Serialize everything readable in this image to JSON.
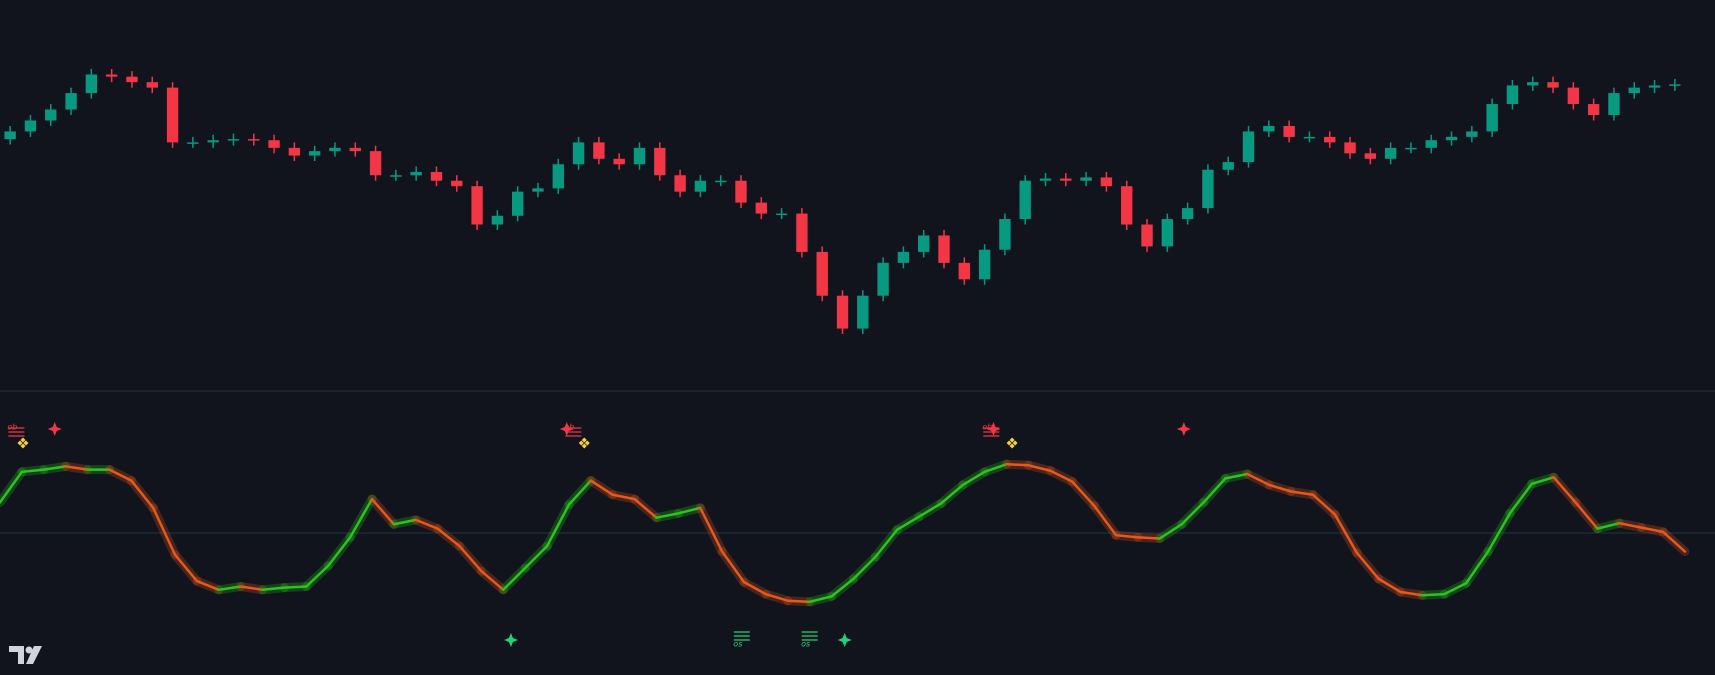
{
  "chart_data": [
    {
      "type": "candlestick",
      "up_color": "#089981",
      "down_color": "#f23645",
      "ylim": [
        0,
        357
      ],
      "open": [
        230,
        237,
        247,
        257,
        272,
        289,
        287,
        282,
        277,
        227,
        227,
        229,
        230,
        229,
        222,
        215,
        219,
        222,
        219,
        197,
        197,
        200,
        192,
        187,
        152,
        160,
        182,
        185,
        207,
        227,
        212,
        207,
        222,
        197,
        182,
        192,
        192,
        172,
        162,
        162,
        127,
        87,
        57,
        87,
        117,
        127,
        142,
        117,
        102,
        129,
        157,
        192,
        194,
        192,
        195,
        187,
        152,
        132,
        157,
        167,
        202,
        209,
        237,
        242,
        232,
        232,
        227,
        217,
        212,
        222,
        222,
        229,
        232,
        237,
        262,
        279,
        282,
        277,
        262,
        252,
        272,
        277,
        279
      ],
      "high": [
        242,
        252,
        262,
        277,
        294,
        294,
        292,
        287,
        282,
        232,
        234,
        235,
        235,
        234,
        227,
        224,
        227,
        227,
        224,
        202,
        205,
        205,
        197,
        192,
        165,
        187,
        190,
        212,
        232,
        232,
        217,
        227,
        227,
        202,
        197,
        197,
        197,
        177,
        167,
        167,
        132,
        92,
        92,
        122,
        132,
        147,
        147,
        122,
        134,
        162,
        197,
        199,
        199,
        200,
        200,
        192,
        157,
        162,
        172,
        207,
        214,
        242,
        247,
        247,
        237,
        237,
        232,
        222,
        227,
        227,
        234,
        237,
        242,
        267,
        284,
        287,
        287,
        282,
        267,
        277,
        282,
        284,
        285
      ],
      "low": [
        225,
        232,
        242,
        252,
        267,
        282,
        277,
        272,
        222,
        222,
        222,
        224,
        224,
        217,
        210,
        210,
        214,
        214,
        192,
        192,
        192,
        187,
        182,
        147,
        147,
        155,
        177,
        180,
        202,
        207,
        202,
        202,
        192,
        177,
        177,
        187,
        167,
        157,
        157,
        122,
        82,
        52,
        52,
        82,
        112,
        122,
        112,
        97,
        97,
        124,
        152,
        187,
        187,
        187,
        182,
        147,
        127,
        127,
        152,
        162,
        197,
        204,
        232,
        227,
        227,
        222,
        212,
        207,
        207,
        217,
        217,
        224,
        227,
        232,
        257,
        274,
        272,
        257,
        247,
        247,
        267,
        272,
        274
      ],
      "close": [
        237,
        247,
        257,
        272,
        289,
        287,
        282,
        277,
        227,
        227,
        229,
        230,
        229,
        222,
        215,
        219,
        222,
        219,
        197,
        197,
        200,
        192,
        187,
        152,
        160,
        182,
        185,
        207,
        227,
        212,
        207,
        222,
        197,
        182,
        192,
        192,
        172,
        162,
        162,
        127,
        87,
        57,
        87,
        117,
        127,
        142,
        117,
        102,
        129,
        157,
        192,
        194,
        192,
        195,
        187,
        152,
        132,
        157,
        167,
        202,
        209,
        237,
        242,
        232,
        232,
        227,
        217,
        212,
        222,
        222,
        229,
        232,
        237,
        262,
        279,
        282,
        277,
        262,
        252,
        272,
        277,
        279,
        280
      ]
    },
    {
      "type": "oscillator",
      "up_color": "#2bc41c",
      "down_color": "#e8571c",
      "ylim": [
        -130,
        130
      ],
      "xlim": [
        0,
        77
      ],
      "hline": 0,
      "values": [
        28,
        56,
        58,
        61,
        58,
        58,
        48,
        23,
        -20,
        -44,
        -52,
        -49,
        -52,
        -50,
        -49,
        -30,
        -4,
        31,
        8,
        12,
        4,
        -12,
        -35,
        -52,
        -32,
        -12,
        26,
        48,
        35,
        31,
        14,
        18,
        23,
        -17,
        -45,
        -56,
        -62,
        -63,
        -58,
        -42,
        -22,
        3,
        15,
        27,
        44,
        56,
        63,
        62,
        57,
        47,
        25,
        -2,
        -4,
        -5,
        8,
        28,
        50,
        54,
        44,
        38,
        35,
        17,
        -18,
        -42,
        -54,
        -57,
        -56,
        -46,
        -17,
        18,
        45,
        51,
        28,
        4,
        9,
        5,
        1,
        -17
      ],
      "markers": [
        {
          "shape": "star",
          "color": "#f23645",
          "position": "top",
          "x": [
            2.5,
            25.9,
            45.4,
            54.1
          ]
        },
        {
          "shape": "diamonds",
          "color": "#f5d142",
          "position": "top",
          "x": [
            1.05,
            26.7,
            46.25
          ]
        },
        {
          "shape": "star",
          "color": "#1ed67a",
          "position": "bottom",
          "x": [
            23.35,
            38.6
          ]
        }
      ],
      "zone_labels": [
        {
          "label": "ob",
          "color": "#f23645",
          "position": "top",
          "x": [
            0.75,
            26.2,
            45.3
          ]
        },
        {
          "label": "os",
          "color": "#1ed67a",
          "position": "bottom",
          "x": [
            33.9,
            37
          ]
        }
      ]
    }
  ]
}
